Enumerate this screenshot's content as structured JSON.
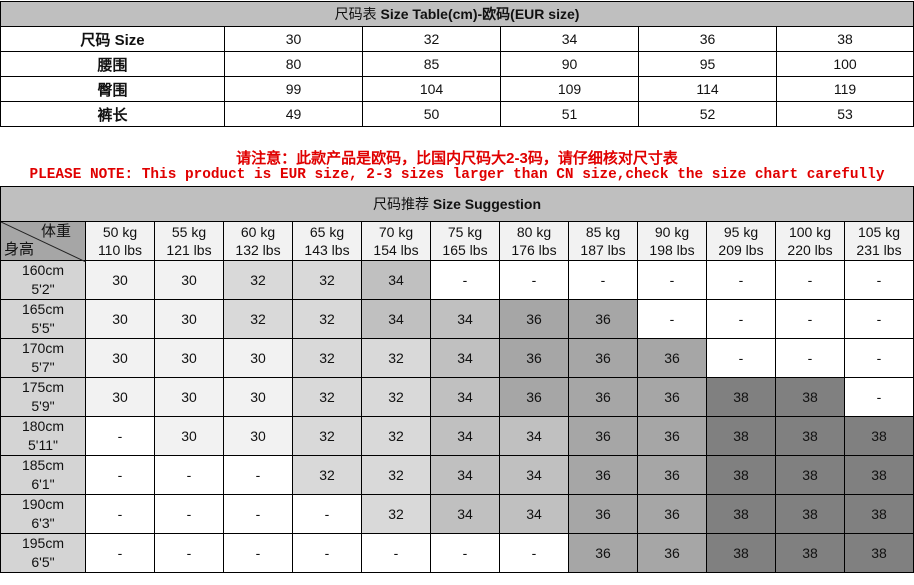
{
  "size_table": {
    "title_cn": "尺码表",
    "title_en": "Size Table(cm)-欧码(EUR size)",
    "rows": [
      {
        "label": "尺码 Size",
        "values": [
          "30",
          "32",
          "34",
          "36",
          "38"
        ]
      },
      {
        "label": "腰围",
        "values": [
          "80",
          "85",
          "90",
          "95",
          "100"
        ]
      },
      {
        "label": "臀围",
        "values": [
          "99",
          "104",
          "109",
          "114",
          "119"
        ]
      },
      {
        "label": "裤长",
        "values": [
          "49",
          "50",
          "51",
          "52",
          "53"
        ]
      }
    ]
  },
  "notes": {
    "cn": "请注意：此款产品是欧码，比国内尺码大2-3码，请仔细核对尺寸表",
    "en": "PLEASE NOTE: This product is EUR size, 2-3 sizes larger than CN size,check the size chart carefully",
    "color": "#e00000"
  },
  "suggestion": {
    "title_cn": "尺码推荐",
    "title_en": "Size Suggestion",
    "corner_top": "体重",
    "corner_bottom": "身高",
    "weights": [
      [
        "50 kg",
        "110 lbs"
      ],
      [
        "55 kg",
        "121 lbs"
      ],
      [
        "60 kg",
        "132 lbs"
      ],
      [
        "65 kg",
        "143 lbs"
      ],
      [
        "70 kg",
        "154 lbs"
      ],
      [
        "75 kg",
        "165 lbs"
      ],
      [
        "80 kg",
        "176 lbs"
      ],
      [
        "85 kg",
        "187 lbs"
      ],
      [
        "90 kg",
        "198 lbs"
      ],
      [
        "95 kg",
        "209 lbs"
      ],
      [
        "100 kg",
        "220 lbs"
      ],
      [
        "105 kg",
        "231 lbs"
      ]
    ],
    "rows": [
      {
        "cm": "160cm",
        "ft": "5'2\"",
        "values": [
          "30",
          "30",
          "32",
          "32",
          "34",
          "-",
          "-",
          "-",
          "-",
          "-",
          "-",
          "-"
        ]
      },
      {
        "cm": "165cm",
        "ft": "5'5\"",
        "values": [
          "30",
          "30",
          "32",
          "32",
          "34",
          "34",
          "36",
          "36",
          "-",
          "-",
          "-",
          "-"
        ]
      },
      {
        "cm": "170cm",
        "ft": "5'7\"",
        "values": [
          "30",
          "30",
          "30",
          "32",
          "32",
          "34",
          "36",
          "36",
          "36",
          "-",
          "-",
          "-"
        ]
      },
      {
        "cm": "175cm",
        "ft": "5'9\"",
        "values": [
          "30",
          "30",
          "30",
          "32",
          "32",
          "34",
          "36",
          "36",
          "36",
          "38",
          "38",
          "-"
        ]
      },
      {
        "cm": "180cm",
        "ft": "5'11\"",
        "values": [
          "-",
          "30",
          "30",
          "32",
          "32",
          "34",
          "34",
          "36",
          "36",
          "38",
          "38",
          "38"
        ]
      },
      {
        "cm": "185cm",
        "ft": "6'1\"",
        "values": [
          "-",
          "-",
          "-",
          "32",
          "32",
          "34",
          "34",
          "36",
          "36",
          "38",
          "38",
          "38"
        ]
      },
      {
        "cm": "190cm",
        "ft": "6'3\"",
        "values": [
          "-",
          "-",
          "-",
          "-",
          "32",
          "34",
          "34",
          "36",
          "36",
          "38",
          "38",
          "38"
        ]
      },
      {
        "cm": "195cm",
        "ft": "6'5\"",
        "values": [
          "-",
          "-",
          "-",
          "-",
          "-",
          "-",
          "-",
          "36",
          "36",
          "38",
          "38",
          "38"
        ]
      }
    ],
    "shade_colors": {
      "30": "#f2f2f2",
      "32": "#d9d9d9",
      "34": "#c0c0c0",
      "36": "#a6a6a6",
      "38": "#808080",
      "-": "#ffffff"
    }
  }
}
